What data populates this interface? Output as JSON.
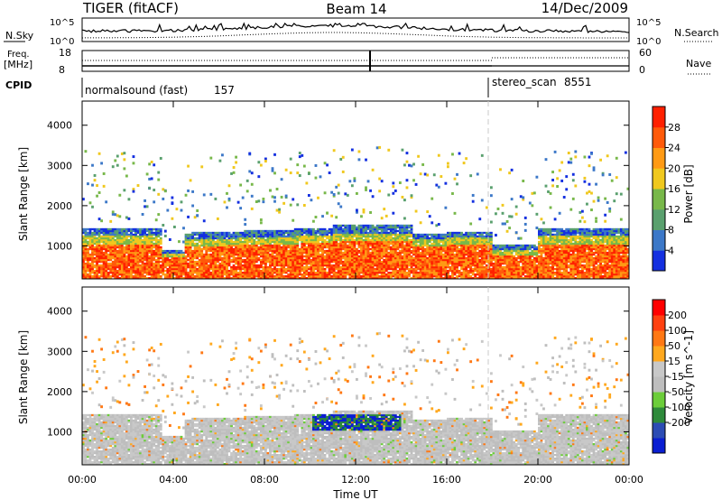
{
  "header": {
    "title_left": "TIGER (fitACF)",
    "title_center": "Beam 14",
    "title_right": "14/Dec/2009"
  },
  "strips": {
    "nsky_label": "N.Sky",
    "nsky_ticks_left": [
      "10^5",
      "10^0"
    ],
    "nsearch_label": "N.Search",
    "nsearch_ticks_right": [
      "10^5",
      "10^0"
    ],
    "freq_label_line1": "Freq.",
    "freq_label_line2": "[MHz]",
    "freq_ticks": [
      "18",
      "8"
    ],
    "nave_label": "Nave",
    "nave_ticks": [
      "60",
      "0"
    ],
    "cpid_label": "CPID",
    "cpid_segments": [
      {
        "name": "normalsound (fast)",
        "id": "157"
      },
      {
        "name": "stereo_scan",
        "id": "8551"
      }
    ]
  },
  "colors": {
    "power": [
      "#1430e0",
      "#3c78c8",
      "#5aa06e",
      "#78b84a",
      "#f0c81e",
      "#ff9a14",
      "#ff5a0a",
      "#ff2000"
    ],
    "velocity": [
      "#0a1ed2",
      "#2c4cb4",
      "#2e8a3a",
      "#6ccd3a",
      "#bebebe",
      "#c8c8c8",
      "#ffa81e",
      "#ff7814",
      "#ff4010",
      "#ff0000"
    ]
  },
  "chart_data": [
    {
      "type": "heatmap",
      "panel": "power",
      "ylabel": "Slant Range [km]",
      "yticks": [
        "1000",
        "2000",
        "3000",
        "4000"
      ],
      "ylim": [
        180,
        4600
      ],
      "xlim_hours": [
        0,
        24
      ],
      "colorbar_label": "Power [dB]",
      "colorbar_ticks": [
        "4",
        "8",
        "12",
        "16",
        "20",
        "24",
        "28"
      ]
    },
    {
      "type": "heatmap",
      "panel": "velocity",
      "xlabel": "Time UT",
      "xticks": [
        "00:00",
        "04:00",
        "08:00",
        "12:00",
        "16:00",
        "20:00",
        "00:00"
      ],
      "ylabel": "Slant Range [km]",
      "yticks": [
        "1000",
        "2000",
        "3000",
        "4000"
      ],
      "ylim": [
        180,
        4600
      ],
      "xlim_hours": [
        0,
        24
      ],
      "colorbar_label": "Velocity [m s^-1]",
      "colorbar_ticks": [
        "200",
        "100",
        "50",
        "15",
        "-15",
        "-50",
        "-100",
        "-200"
      ]
    }
  ]
}
